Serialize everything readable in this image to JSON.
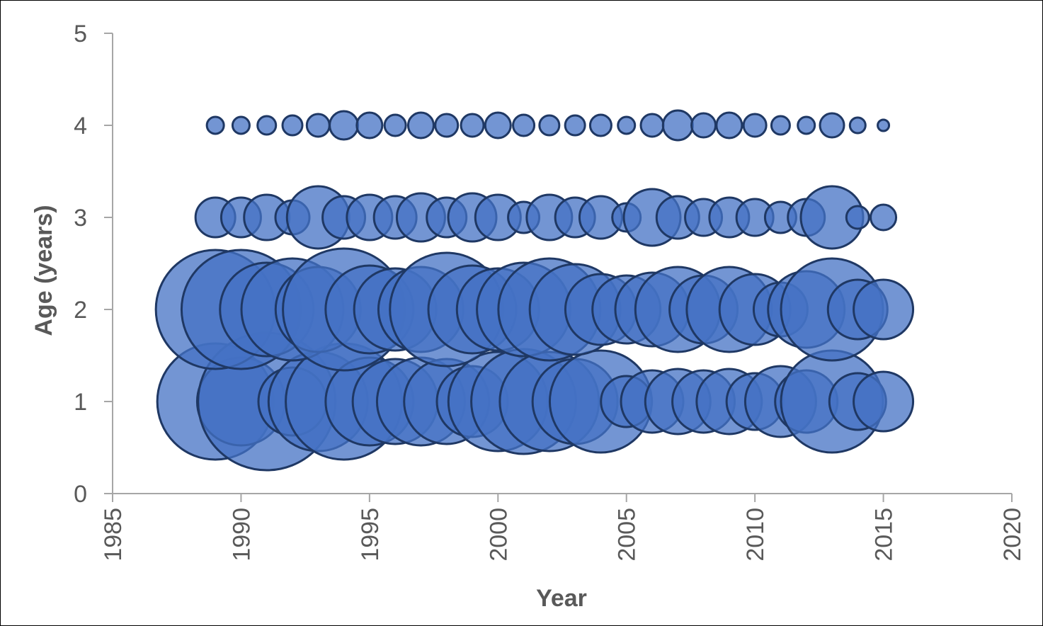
{
  "chart_data": {
    "type": "bubble",
    "xlabel": "Year",
    "ylabel": "Age (years)",
    "xlim": [
      1985,
      2020
    ],
    "ylim": [
      0,
      5
    ],
    "xticks": [
      "1985",
      "1990",
      "1995",
      "2000",
      "2005",
      "2010",
      "2015",
      "2020"
    ],
    "yticks": [
      "0",
      "1",
      "2",
      "3",
      "4",
      "5"
    ],
    "grid": false,
    "legend": "none",
    "colors": {
      "fill": "#4472C4",
      "stroke": "#1F3864",
      "axis": "#A6A6A6",
      "text": "#595959"
    },
    "series": [
      {
        "y": 1,
        "points": [
          {
            "x": 1989,
            "size": 82
          },
          {
            "x": 1990,
            "size": 62
          },
          {
            "x": 1991,
            "size": 97
          },
          {
            "x": 1992,
            "size": 48
          },
          {
            "x": 1993,
            "size": 70
          },
          {
            "x": 1994,
            "size": 82
          },
          {
            "x": 1995,
            "size": 62
          },
          {
            "x": 1996,
            "size": 60
          },
          {
            "x": 1997,
            "size": 62
          },
          {
            "x": 1998,
            "size": 60
          },
          {
            "x": 1999,
            "size": 50
          },
          {
            "x": 2000,
            "size": 70
          },
          {
            "x": 2001,
            "size": 74
          },
          {
            "x": 2002,
            "size": 70
          },
          {
            "x": 2003,
            "size": 60
          },
          {
            "x": 2004,
            "size": 72
          },
          {
            "x": 2005,
            "size": 36
          },
          {
            "x": 2006,
            "size": 44
          },
          {
            "x": 2007,
            "size": 46
          },
          {
            "x": 2008,
            "size": 44
          },
          {
            "x": 2009,
            "size": 46
          },
          {
            "x": 2010,
            "size": 40
          },
          {
            "x": 2011,
            "size": 50
          },
          {
            "x": 2012,
            "size": 44
          },
          {
            "x": 2013,
            "size": 72
          },
          {
            "x": 2014,
            "size": 40
          },
          {
            "x": 2015,
            "size": 42
          }
        ]
      },
      {
        "y": 2,
        "points": [
          {
            "x": 1989,
            "size": 84
          },
          {
            "x": 1990,
            "size": 84
          },
          {
            "x": 1991,
            "size": 66
          },
          {
            "x": 1992,
            "size": 72
          },
          {
            "x": 1993,
            "size": 60
          },
          {
            "x": 1994,
            "size": 86
          },
          {
            "x": 1995,
            "size": 62
          },
          {
            "x": 1996,
            "size": 58
          },
          {
            "x": 1997,
            "size": 60
          },
          {
            "x": 1998,
            "size": 80
          },
          {
            "x": 1999,
            "size": 62
          },
          {
            "x": 2000,
            "size": 58
          },
          {
            "x": 2001,
            "size": 66
          },
          {
            "x": 2002,
            "size": 72
          },
          {
            "x": 2003,
            "size": 64
          },
          {
            "x": 2004,
            "size": 50
          },
          {
            "x": 2005,
            "size": 48
          },
          {
            "x": 2006,
            "size": 52
          },
          {
            "x": 2007,
            "size": 60
          },
          {
            "x": 2008,
            "size": 48
          },
          {
            "x": 2009,
            "size": 60
          },
          {
            "x": 2010,
            "size": 50
          },
          {
            "x": 2011,
            "size": 38
          },
          {
            "x": 2012,
            "size": 54
          },
          {
            "x": 2013,
            "size": 72
          },
          {
            "x": 2014,
            "size": 42
          },
          {
            "x": 2015,
            "size": 42
          }
        ]
      },
      {
        "y": 3,
        "points": [
          {
            "x": 1989,
            "size": 28
          },
          {
            "x": 1990,
            "size": 28
          },
          {
            "x": 1991,
            "size": 32
          },
          {
            "x": 1992,
            "size": 24
          },
          {
            "x": 1993,
            "size": 44
          },
          {
            "x": 1994,
            "size": 30
          },
          {
            "x": 1995,
            "size": 32
          },
          {
            "x": 1996,
            "size": 30
          },
          {
            "x": 1997,
            "size": 34
          },
          {
            "x": 1998,
            "size": 28
          },
          {
            "x": 1999,
            "size": 34
          },
          {
            "x": 2000,
            "size": 32
          },
          {
            "x": 2001,
            "size": 22
          },
          {
            "x": 2002,
            "size": 32
          },
          {
            "x": 2003,
            "size": 28
          },
          {
            "x": 2004,
            "size": 30
          },
          {
            "x": 2005,
            "size": 20
          },
          {
            "x": 2006,
            "size": 40
          },
          {
            "x": 2007,
            "size": 30
          },
          {
            "x": 2008,
            "size": 26
          },
          {
            "x": 2009,
            "size": 28
          },
          {
            "x": 2010,
            "size": 26
          },
          {
            "x": 2011,
            "size": 22
          },
          {
            "x": 2012,
            "size": 26
          },
          {
            "x": 2013,
            "size": 44
          },
          {
            "x": 2014,
            "size": 16
          },
          {
            "x": 2015,
            "size": 18
          }
        ]
      },
      {
        "y": 4,
        "points": [
          {
            "x": 1989,
            "size": 12
          },
          {
            "x": 1990,
            "size": 12
          },
          {
            "x": 1991,
            "size": 13
          },
          {
            "x": 1992,
            "size": 14
          },
          {
            "x": 1993,
            "size": 16
          },
          {
            "x": 1994,
            "size": 20
          },
          {
            "x": 1995,
            "size": 18
          },
          {
            "x": 1996,
            "size": 15
          },
          {
            "x": 1997,
            "size": 18
          },
          {
            "x": 1998,
            "size": 16
          },
          {
            "x": 1999,
            "size": 16
          },
          {
            "x": 2000,
            "size": 18
          },
          {
            "x": 2001,
            "size": 15
          },
          {
            "x": 2002,
            "size": 14
          },
          {
            "x": 2003,
            "size": 14
          },
          {
            "x": 2004,
            "size": 15
          },
          {
            "x": 2005,
            "size": 12
          },
          {
            "x": 2006,
            "size": 16
          },
          {
            "x": 2007,
            "size": 21
          },
          {
            "x": 2008,
            "size": 17
          },
          {
            "x": 2009,
            "size": 18
          },
          {
            "x": 2010,
            "size": 16
          },
          {
            "x": 2011,
            "size": 13
          },
          {
            "x": 2012,
            "size": 12
          },
          {
            "x": 2013,
            "size": 17
          },
          {
            "x": 2014,
            "size": 11
          },
          {
            "x": 2015,
            "size": 8
          }
        ]
      }
    ]
  }
}
